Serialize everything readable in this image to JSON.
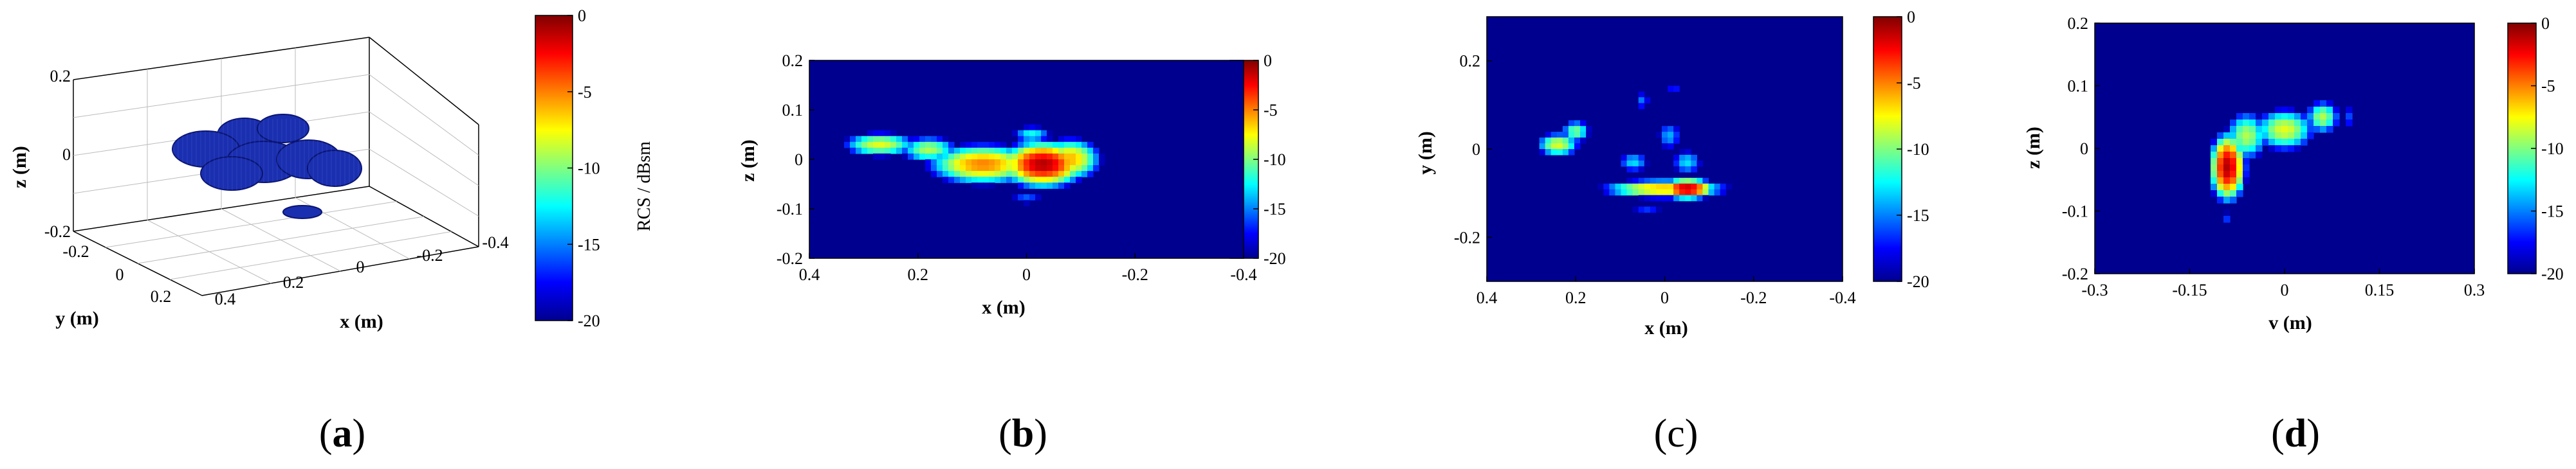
{
  "colors": {
    "jet": [
      "#00008f",
      "#0000ff",
      "#0080ff",
      "#00ffff",
      "#80ff80",
      "#ffff00",
      "#ff8000",
      "#ff0000",
      "#800000"
    ],
    "background_map": "#00008f",
    "frame": "#000000"
  },
  "chart_data": [
    {
      "panel": "a",
      "type": "scatter",
      "subtype": "3d-isosurface",
      "xlabel": "x (m)",
      "ylabel": "y (m)",
      "zlabel": "z (m)",
      "x_ticks": [
        "0.4",
        "0.2",
        "0",
        "-0.2",
        "-0.4"
      ],
      "y_ticks": [
        "-0.2",
        "0",
        "0.2"
      ],
      "z_ticks": [
        "0.2",
        "0",
        "-0.2"
      ],
      "colorbar": {
        "label": "RCS / dBsm",
        "ticks": [
          "0",
          "-5",
          "-10",
          "-15",
          "-20"
        ],
        "range": [
          -20,
          0
        ]
      },
      "grid": true
    },
    {
      "panel": "b",
      "type": "heatmap",
      "xlabel": "x (m)",
      "ylabel": "z (m)",
      "x_ticks": [
        "0.4",
        "0.2",
        "0",
        "-0.2",
        "-0.4"
      ],
      "y_ticks": [
        "0.2",
        "0.1",
        "0",
        "-0.1",
        "-0.2"
      ],
      "xlim": [
        0.4,
        -0.4
      ],
      "ylim": [
        -0.2,
        0.2
      ],
      "colorbar": {
        "ticks": [
          "0",
          "-5",
          "-10",
          "-15",
          "-20"
        ],
        "range": [
          -20,
          0
        ]
      },
      "blobs": [
        {
          "x": 0.27,
          "y": 0.03,
          "sx": 0.05,
          "sy": 0.018,
          "v": -8
        },
        {
          "x": 0.18,
          "y": 0.02,
          "sx": 0.04,
          "sy": 0.02,
          "v": -9
        },
        {
          "x": 0.08,
          "y": -0.01,
          "sx": 0.07,
          "sy": 0.028,
          "v": -5
        },
        {
          "x": -0.03,
          "y": -0.01,
          "sx": 0.05,
          "sy": 0.03,
          "v": -1
        },
        {
          "x": -0.08,
          "y": 0.0,
          "sx": 0.04,
          "sy": 0.03,
          "v": -6
        },
        {
          "x": -0.01,
          "y": 0.05,
          "sx": 0.03,
          "sy": 0.015,
          "v": -12
        },
        {
          "x": 0.0,
          "y": -0.08,
          "sx": 0.03,
          "sy": 0.01,
          "v": -15
        }
      ]
    },
    {
      "panel": "c",
      "type": "heatmap",
      "xlabel": "x (m)",
      "ylabel": "y (m)",
      "x_ticks": [
        "0.4",
        "0.2",
        "0",
        "-0.2",
        "-0.4"
      ],
      "y_ticks": [
        "0.2",
        "0",
        "-0.2"
      ],
      "xlim": [
        0.4,
        -0.4
      ],
      "ylim": [
        -0.3,
        0.3
      ],
      "colorbar": {
        "ticks": [
          "0",
          "-5",
          "-10",
          "-15",
          "-20"
        ],
        "range": [
          -20,
          0
        ]
      },
      "blobs": [
        {
          "x": 0.24,
          "y": 0.01,
          "sx": 0.035,
          "sy": 0.02,
          "v": -8
        },
        {
          "x": 0.2,
          "y": 0.04,
          "sx": 0.025,
          "sy": 0.02,
          "v": -10
        },
        {
          "x": 0.0,
          "y": -0.09,
          "sx": 0.1,
          "sy": 0.015,
          "v": -6
        },
        {
          "x": -0.05,
          "y": -0.09,
          "sx": 0.04,
          "sy": 0.015,
          "v": -1
        },
        {
          "x": 0.07,
          "y": -0.03,
          "sx": 0.03,
          "sy": 0.02,
          "v": -13
        },
        {
          "x": -0.05,
          "y": -0.03,
          "sx": 0.03,
          "sy": 0.025,
          "v": -13
        },
        {
          "x": -0.01,
          "y": 0.03,
          "sx": 0.025,
          "sy": 0.03,
          "v": -14
        },
        {
          "x": 0.05,
          "y": 0.11,
          "sx": 0.015,
          "sy": 0.02,
          "v": -15
        },
        {
          "x": -0.02,
          "y": 0.14,
          "sx": 0.015,
          "sy": 0.015,
          "v": -16
        },
        {
          "x": 0.04,
          "y": -0.14,
          "sx": 0.04,
          "sy": 0.01,
          "v": -16
        }
      ]
    },
    {
      "panel": "d",
      "type": "heatmap",
      "xlabel": "v (m)",
      "ylabel": "z (m)",
      "x_ticks": [
        "-0.3",
        "-0.15",
        "0",
        "0.15",
        "0.3"
      ],
      "y_ticks": [
        "0.2",
        "0.1",
        "0",
        "-0.1",
        "-0.2"
      ],
      "xlim": [
        -0.3,
        0.3
      ],
      "ylim": [
        -0.2,
        0.2
      ],
      "colorbar": {
        "ticks": [
          "0",
          "-5",
          "-10",
          "-15",
          "-20"
        ],
        "range": [
          -20,
          0
        ]
      },
      "blobs": [
        {
          "x": -0.09,
          "y": -0.03,
          "sx": 0.018,
          "sy": 0.035,
          "v": -1
        },
        {
          "x": -0.06,
          "y": 0.02,
          "sx": 0.025,
          "sy": 0.03,
          "v": -9
        },
        {
          "x": 0.0,
          "y": 0.03,
          "sx": 0.035,
          "sy": 0.025,
          "v": -8
        },
        {
          "x": 0.06,
          "y": 0.05,
          "sx": 0.02,
          "sy": 0.02,
          "v": -9
        },
        {
          "x": 0.1,
          "y": 0.05,
          "sx": 0.01,
          "sy": 0.02,
          "v": -16
        },
        {
          "x": -0.09,
          "y": -0.11,
          "sx": 0.01,
          "sy": 0.01,
          "v": -16
        }
      ]
    }
  ],
  "panel_labels": [
    "a",
    "b",
    "c",
    "d"
  ]
}
